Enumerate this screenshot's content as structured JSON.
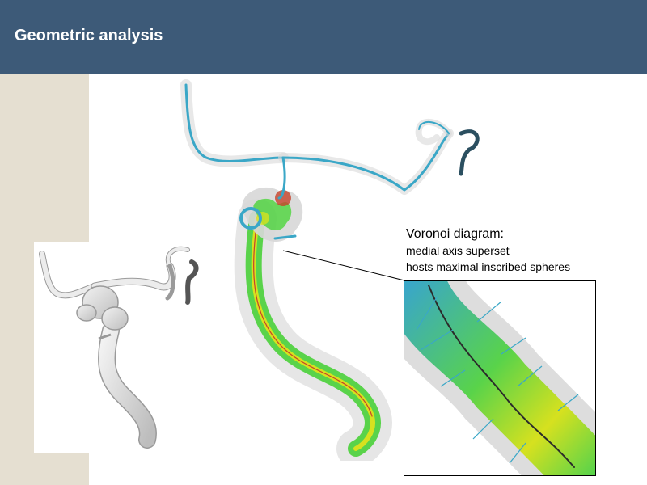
{
  "header": {
    "title": "Geometric analysis"
  },
  "annotation": {
    "title": "Voronoi diagram:",
    "lines": [
      "medial axis superset",
      "hosts maximal inscribed spheres"
    ]
  },
  "figures": {
    "left": "gray-vessel-surface",
    "main": "voronoi-colored-vessel",
    "inset": "voronoi-zoom"
  },
  "colors": {
    "header_bg": "#3d5a78",
    "side_strip": "#e5dfd1",
    "vessel_gray": "#d8d8d8",
    "voronoi_green": "#59d34a",
    "voronoi_yellow": "#d6e11f",
    "voronoi_cyan": "#3aa7c7",
    "voronoi_red": "#c7422a"
  }
}
